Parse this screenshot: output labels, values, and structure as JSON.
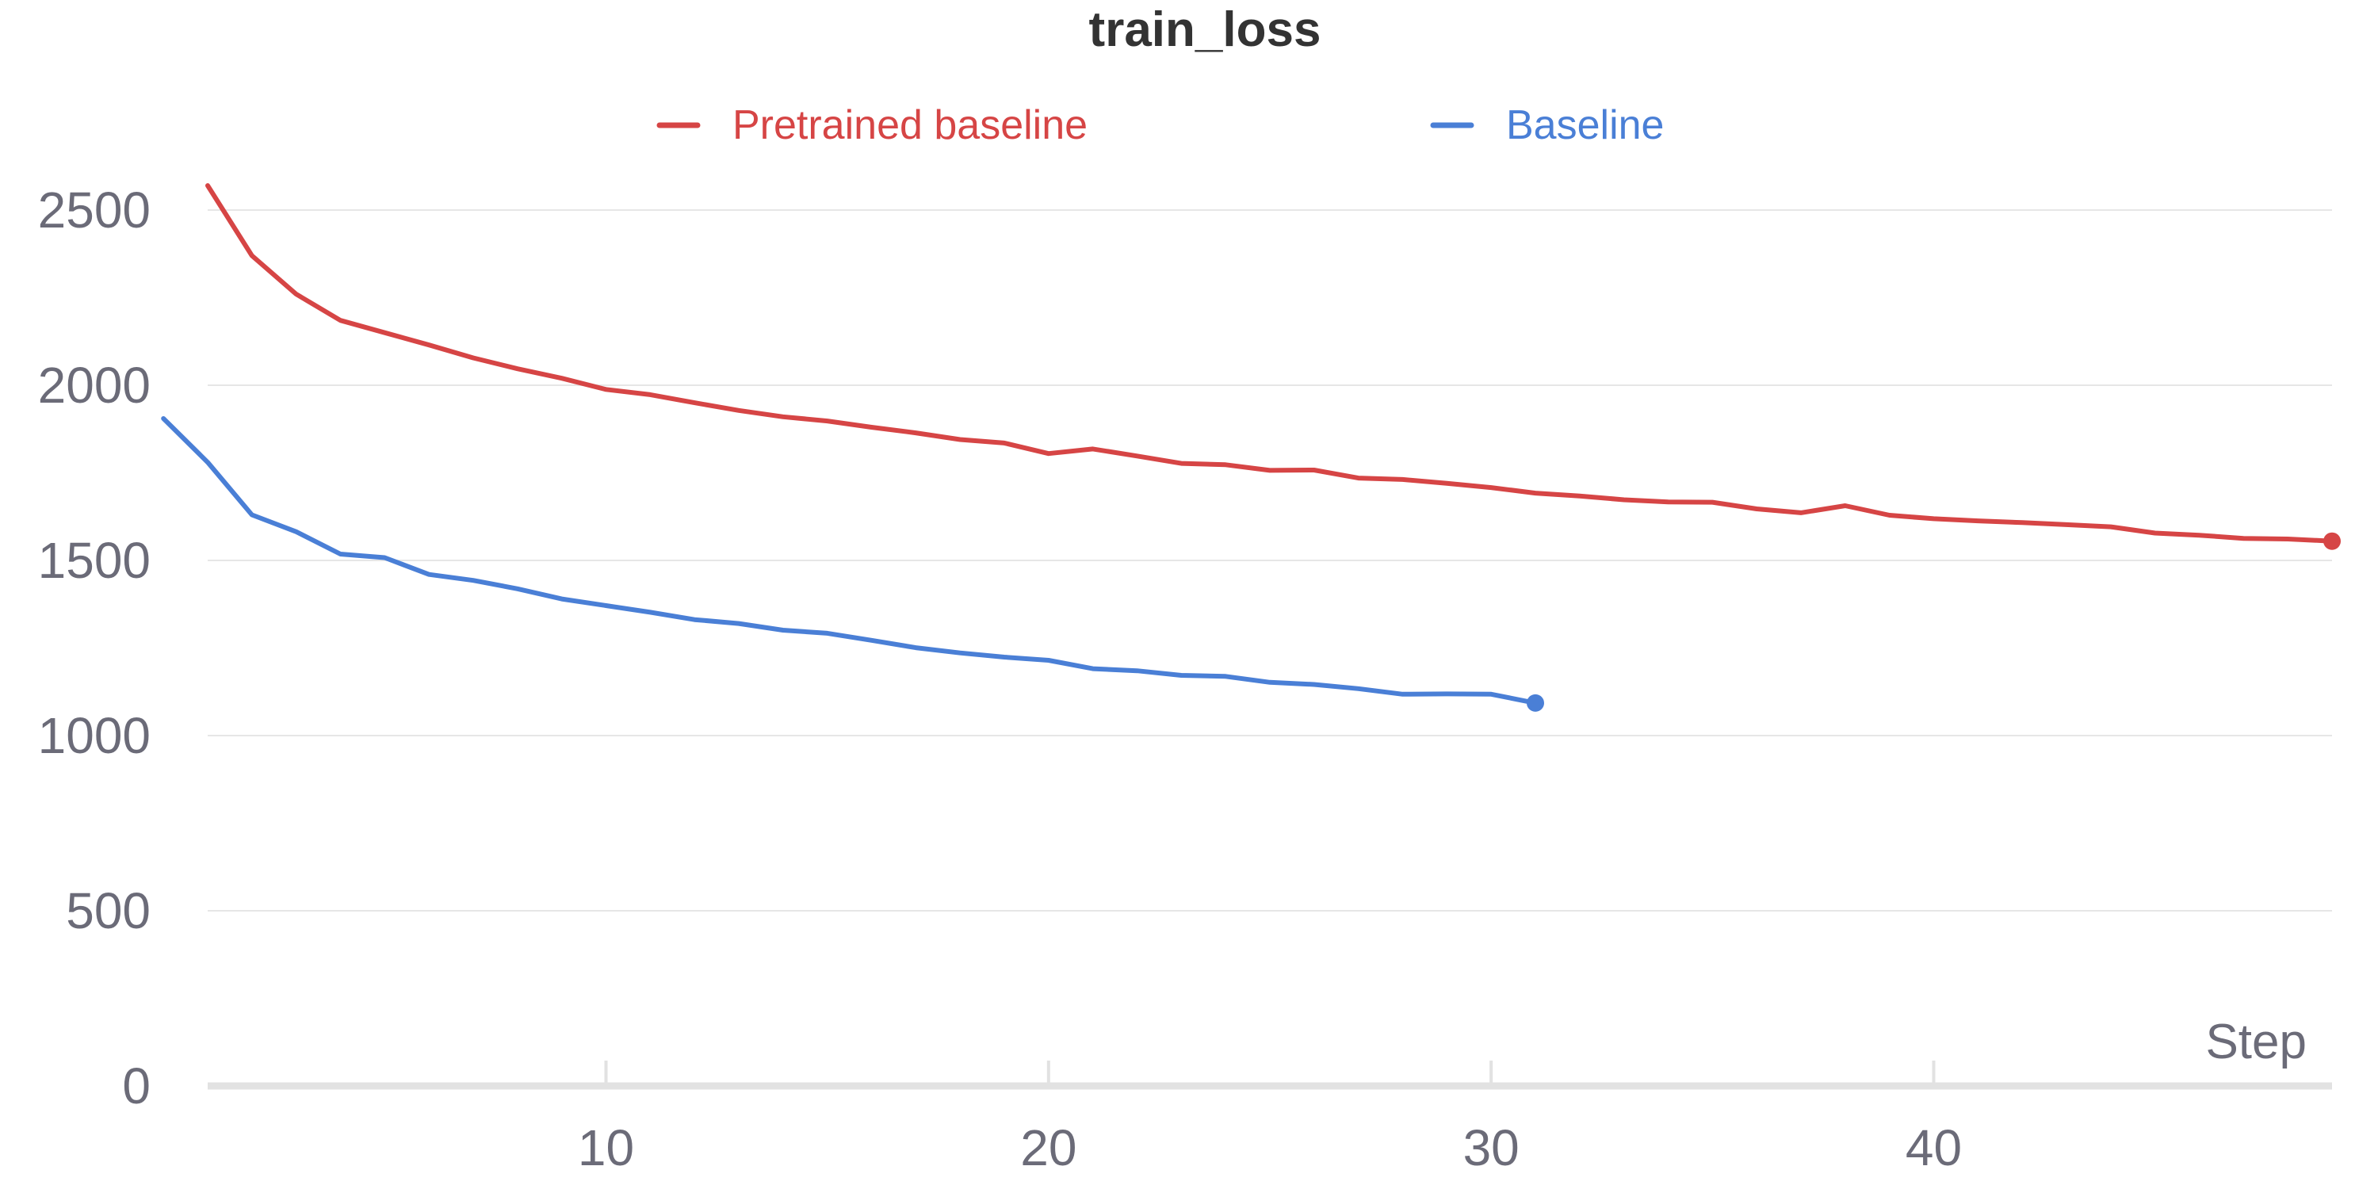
{
  "chart_data": {
    "type": "line",
    "title": "train_loss",
    "xlabel": "Step",
    "ylabel": "",
    "xlim": [
      1,
      49
    ],
    "ylim": [
      0,
      2600
    ],
    "x_ticks": [
      10,
      20,
      30,
      40
    ],
    "y_ticks": [
      0,
      500,
      1000,
      1500,
      2000,
      2500
    ],
    "grid": true,
    "legend_position": "top",
    "series": [
      {
        "name": "Pretrained baseline",
        "color": "#d64545",
        "x": [
          1,
          2,
          3,
          4,
          5,
          6,
          7,
          8,
          9,
          10,
          11,
          12,
          13,
          14,
          15,
          16,
          17,
          18,
          19,
          20,
          21,
          22,
          23,
          24,
          25,
          26,
          27,
          28,
          29,
          30,
          31,
          32,
          33,
          34,
          35,
          36,
          37,
          38,
          39,
          40,
          41,
          42,
          43,
          44,
          45,
          46,
          47,
          48,
          49
        ],
        "values": [
          2570,
          2370,
          2260,
          2185,
          2150,
          2115,
          2078,
          2047,
          2020,
          1988,
          1973,
          1950,
          1928,
          1910,
          1898,
          1880,
          1864,
          1845,
          1835,
          1805,
          1818,
          1798,
          1777,
          1773,
          1757,
          1758,
          1735,
          1731,
          1720,
          1708,
          1692,
          1684,
          1673,
          1667,
          1666,
          1647,
          1636,
          1656,
          1629,
          1619,
          1613,
          1608,
          1602,
          1596,
          1578,
          1572,
          1563,
          1561,
          1555
        ]
      },
      {
        "name": "Baseline",
        "color": "#4a7fd6",
        "x": [
          0,
          1,
          2,
          3,
          4,
          5,
          6,
          7,
          8,
          9,
          10,
          11,
          12,
          13,
          14,
          15,
          16,
          17,
          18,
          19,
          20,
          21,
          22,
          23,
          24,
          25,
          26,
          27,
          28,
          29,
          30,
          31
        ],
        "values": [
          1905,
          1780,
          1630,
          1582,
          1518,
          1508,
          1460,
          1443,
          1419,
          1390,
          1371,
          1352,
          1331,
          1320,
          1301,
          1292,
          1272,
          1251,
          1236,
          1224,
          1215,
          1191,
          1185,
          1172,
          1169,
          1152,
          1146,
          1134,
          1118,
          1119,
          1118,
          1093
        ]
      }
    ]
  }
}
